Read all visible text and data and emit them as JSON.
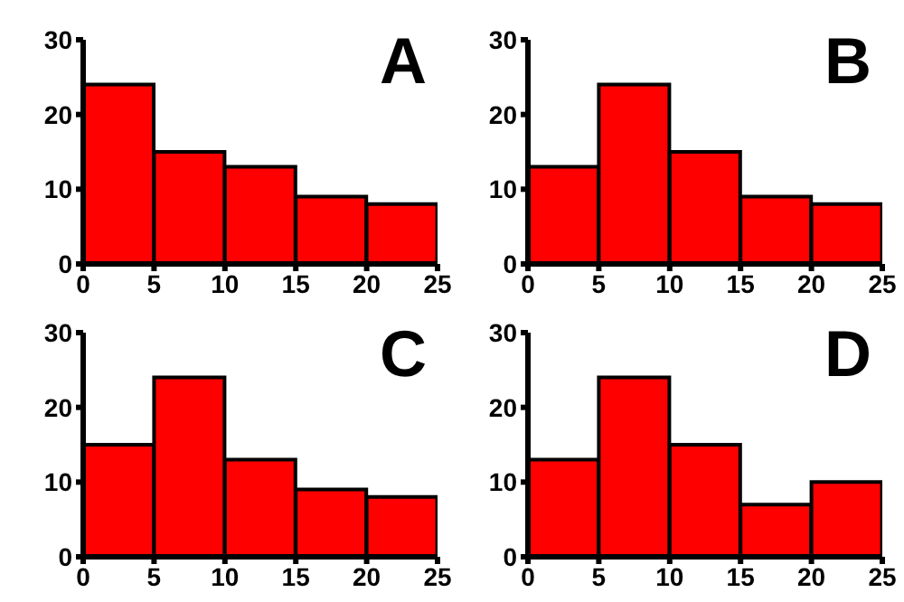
{
  "chart_data": [
    {
      "type": "histogram",
      "bins": [
        0,
        5,
        10,
        15,
        20,
        25
      ],
      "values": [
        24,
        15,
        13,
        9,
        8
      ],
      "color": "#ff0000",
      "xlim": [
        0,
        25
      ],
      "xticks": [
        0,
        5,
        10,
        15,
        20,
        25
      ],
      "ylim": [
        0,
        30
      ],
      "yticks": [
        0,
        10,
        20,
        30
      ],
      "grid": false,
      "annotations": [
        "A"
      ]
    },
    {
      "type": "histogram",
      "bins": [
        0,
        5,
        10,
        15,
        20,
        25
      ],
      "values": [
        13,
        24,
        15,
        9,
        8
      ],
      "color": "#ff0000",
      "xlim": [
        0,
        25
      ],
      "xticks": [
        0,
        5,
        10,
        15,
        20,
        25
      ],
      "ylim": [
        0,
        30
      ],
      "yticks": [
        0,
        10,
        20,
        30
      ],
      "grid": false,
      "annotations": [
        "B"
      ]
    },
    {
      "type": "histogram",
      "bins": [
        0,
        5,
        10,
        15,
        20,
        25
      ],
      "values": [
        15,
        24,
        13,
        9,
        8
      ],
      "color": "#ff0000",
      "xlim": [
        0,
        25
      ],
      "xticks": [
        0,
        5,
        10,
        15,
        20,
        25
      ],
      "ylim": [
        0,
        30
      ],
      "yticks": [
        0,
        10,
        20,
        30
      ],
      "grid": false,
      "annotations": [
        "C"
      ]
    },
    {
      "type": "histogram",
      "bins": [
        0,
        5,
        10,
        15,
        20,
        25
      ],
      "values": [
        13,
        24,
        15,
        7,
        10
      ],
      "color": "#ff0000",
      "xlim": [
        0,
        25
      ],
      "xticks": [
        0,
        5,
        10,
        15,
        20,
        25
      ],
      "ylim": [
        0,
        30
      ],
      "yticks": [
        0,
        10,
        20,
        30
      ],
      "grid": false,
      "annotations": [
        "D"
      ]
    }
  ]
}
